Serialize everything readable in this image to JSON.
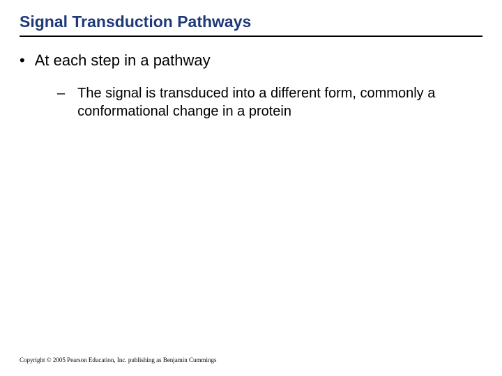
{
  "slide": {
    "title": "Signal Transduction Pathways",
    "title_color": "#1f3a7a",
    "title_fontsize": 23,
    "underline_color": "#000000",
    "background_color": "#ffffff",
    "bullets": {
      "level1": {
        "marker": "•",
        "text": "At each step in a pathway",
        "fontsize": 22,
        "color": "#000000"
      },
      "level2": {
        "marker": "–",
        "text": "The signal is transduced into a different form, commonly a conformational change in a protein",
        "fontsize": 20,
        "color": "#000000"
      }
    },
    "copyright": "Copyright © 2005 Pearson Education, Inc. publishing as Benjamin Cummings"
  }
}
